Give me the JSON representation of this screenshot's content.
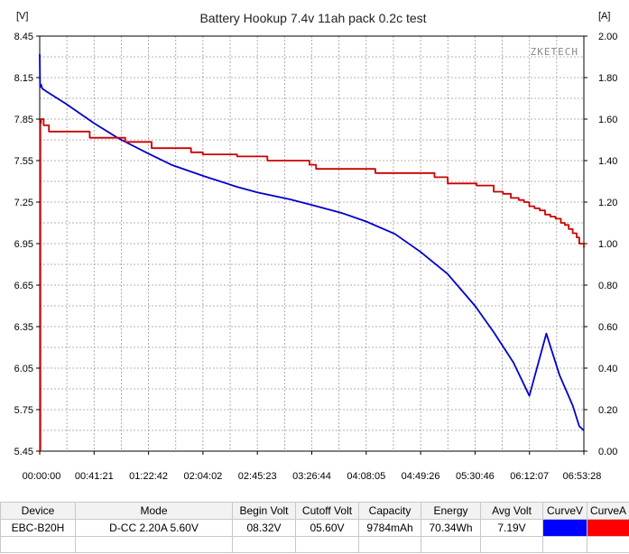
{
  "chart_data": {
    "type": "line",
    "title": "Battery Hookup 7.4v 11ah pack 0.2c test",
    "watermark": "ZKETECH",
    "y_left_unit": "[V]",
    "y_right_unit": "[A]",
    "ylim_left": [
      5.45,
      8.45
    ],
    "ylim_right": [
      0.0,
      2.0
    ],
    "y_left_ticks": [
      "8.45",
      "8.15",
      "7.85",
      "7.55",
      "7.25",
      "6.95",
      "6.65",
      "6.35",
      "6.05",
      "5.75",
      "5.45"
    ],
    "y_right_ticks": [
      "2.00",
      "1.80",
      "1.60",
      "1.40",
      "1.20",
      "1.00",
      "0.80",
      "0.60",
      "0.40",
      "0.20",
      "0.00"
    ],
    "x_ticks": [
      "00:00:00",
      "00:41:21",
      "01:22:42",
      "02:04:02",
      "02:45:23",
      "03:26:44",
      "04:08:05",
      "04:49:26",
      "05:30:46",
      "06:12:07",
      "06:53:28"
    ],
    "grid": true,
    "xlim_minutes": [
      0,
      413.5
    ],
    "series": [
      {
        "axis": "left",
        "color": "#0000cc",
        "x_minutes": [
          0,
          0.3,
          1,
          2,
          5,
          10,
          20,
          41.35,
          60,
          82.7,
          100,
          124.05,
          150,
          165.4,
          190,
          206.7,
          230,
          248.1,
          270,
          289.4,
          310,
          330.8,
          345,
          360,
          372.1,
          385,
          395,
          405,
          410,
          413.5
        ],
        "values": [
          8.32,
          8.08,
          8.1,
          8.07,
          8.05,
          8.02,
          7.96,
          7.82,
          7.71,
          7.6,
          7.52,
          7.44,
          7.36,
          7.32,
          7.27,
          7.23,
          7.17,
          7.11,
          7.02,
          6.89,
          6.73,
          6.5,
          6.31,
          6.09,
          5.85,
          6.3,
          6.0,
          5.78,
          5.63,
          5.6
        ]
      },
      {
        "axis": "right",
        "color": "#cc0000",
        "x_minutes": [
          0,
          0.5,
          1,
          3,
          7,
          38,
          65,
          85,
          115,
          124,
          150,
          173,
          205,
          210,
          232,
          255,
          275,
          300,
          310,
          332,
          345,
          352,
          358,
          364,
          368,
          372,
          376,
          380,
          384,
          388,
          392,
          396,
          399,
          402,
          405,
          408,
          410,
          413.5
        ],
        "values": [
          0.0,
          1.58,
          1.6,
          1.57,
          1.54,
          1.51,
          1.49,
          1.46,
          1.44,
          1.43,
          1.42,
          1.4,
          1.38,
          1.36,
          1.36,
          1.34,
          1.34,
          1.32,
          1.29,
          1.28,
          1.25,
          1.24,
          1.22,
          1.21,
          1.2,
          1.18,
          1.17,
          1.16,
          1.14,
          1.13,
          1.12,
          1.1,
          1.09,
          1.07,
          1.05,
          1.03,
          1.0,
          0.98
        ]
      }
    ]
  },
  "table": {
    "headers": [
      "Device",
      "Mode",
      "Begin Volt",
      "Cutoff Volt",
      "Capacity",
      "Energy",
      "Avg Volt",
      "CurveV",
      "CurveA"
    ],
    "row": [
      "EBC-B20H",
      "D-CC  2.20A  5.60V",
      "08.32V",
      "05.60V",
      "9784mAh",
      "70.34Wh",
      "7.19V"
    ],
    "curve_colors": [
      "#0000ff",
      "#ff0000"
    ]
  }
}
